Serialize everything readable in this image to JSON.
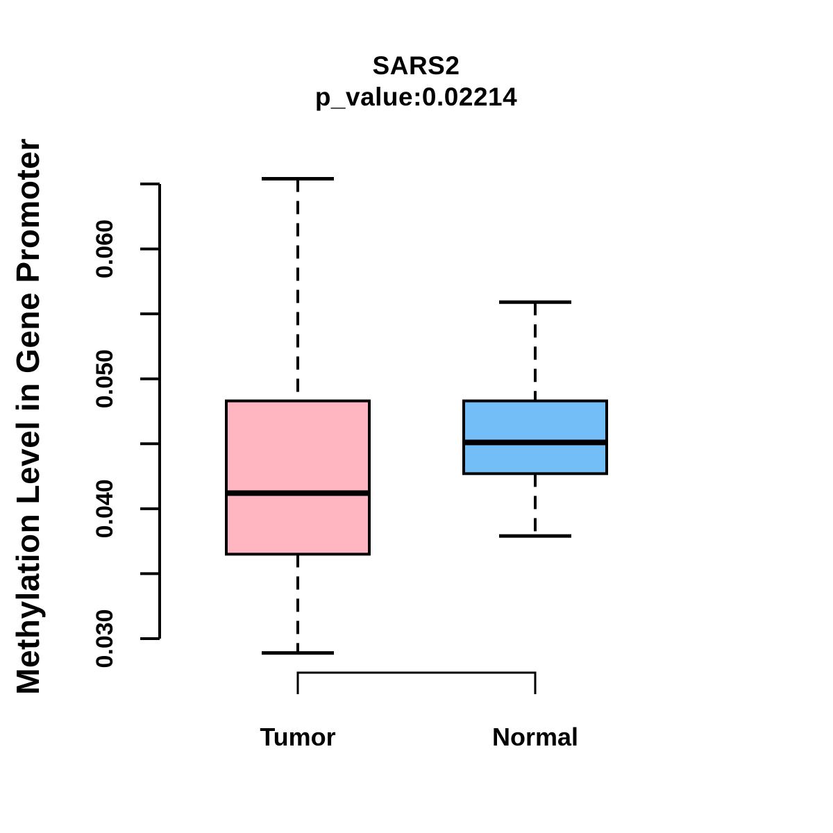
{
  "chart_data": {
    "type": "boxplot",
    "title": "SARS2",
    "subtitle": "p_value:0.02214",
    "p_value": 0.02214,
    "ylabel": "Methylation Level in Gene Promoter",
    "xlabel": "",
    "categories": [
      "Tumor",
      "Normal"
    ],
    "series": [
      {
        "name": "Tumor",
        "fill_color": "#FFB6C1",
        "whisker_low": 0.0289,
        "q1": 0.0365,
        "median": 0.0412,
        "q3": 0.0483,
        "whisker_high": 0.0654
      },
      {
        "name": "Normal",
        "fill_color": "#74BEF8",
        "whisker_low": 0.0379,
        "q1": 0.0427,
        "median": 0.0451,
        "q3": 0.0483,
        "whisker_high": 0.0559
      }
    ],
    "y_axis": {
      "range": [
        0.03,
        0.065
      ],
      "tick_values": [
        0.03,
        0.035,
        0.04,
        0.045,
        0.05,
        0.055,
        0.06,
        0.065
      ],
      "labeled_ticks": [
        {
          "value": 0.03,
          "label": "0.030"
        },
        {
          "value": 0.04,
          "label": "0.040"
        },
        {
          "value": 0.05,
          "label": "0.050"
        },
        {
          "value": 0.06,
          "label": "0.060"
        }
      ]
    },
    "ylim": [
      0.0289,
      0.0654
    ],
    "grid": false,
    "legend": "none",
    "comparison_bracket": {
      "between": [
        "Tumor",
        "Normal"
      ],
      "label": ""
    },
    "line_color": "#000000",
    "background_color": "#FFFFFF"
  }
}
